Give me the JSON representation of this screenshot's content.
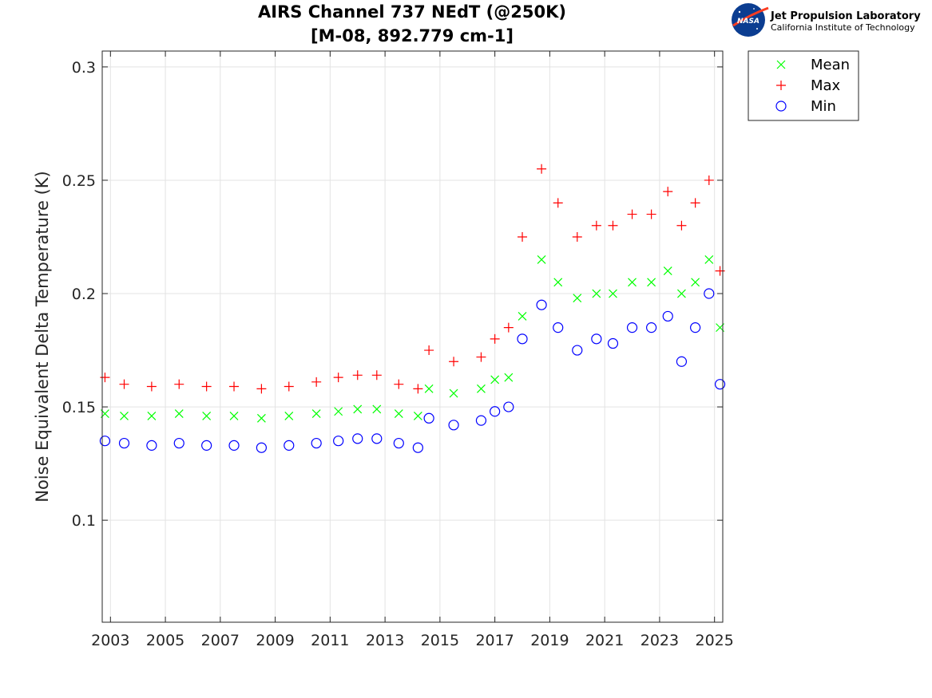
{
  "logo": {
    "agency": "NASA",
    "lab_name": "Jet Propulsion Laboratory",
    "institution": "California Institute of Technology",
    "colors": {
      "nasa_blue": "#0b3d91",
      "nasa_red": "#fc3d21"
    }
  },
  "chart_data": {
    "type": "scatter",
    "title": "AIRS Channel 737 NEdT (@250K)",
    "subtitle": "[M-08, 892.779 cm-1]",
    "xlabel": "",
    "ylabel": "Noise Equivalent Delta Temperature (K)",
    "xlim": [
      2002.7,
      2025.3
    ],
    "ylim": [
      0.055,
      0.307
    ],
    "xticks": [
      2003,
      2005,
      2007,
      2009,
      2011,
      2013,
      2015,
      2017,
      2019,
      2021,
      2023,
      2025
    ],
    "xtick_labels": [
      "2003",
      "2005",
      "2007",
      "2009",
      "2011",
      "2013",
      "2015",
      "2017",
      "2019",
      "2021",
      "2023",
      "2025"
    ],
    "yticks": [
      0.1,
      0.15,
      0.2,
      0.25,
      0.3
    ],
    "ytick_labels": [
      "0.1",
      "0.15",
      "0.2",
      "0.25",
      "0.3"
    ],
    "grid": true,
    "legend_position": "outside-top-right",
    "series": [
      {
        "name": "Mean",
        "marker": "x",
        "color": "#00ff00",
        "x": [
          2002.8,
          2003.5,
          2004.5,
          2005.5,
          2006.5,
          2007.5,
          2008.5,
          2009.5,
          2010.5,
          2011.3,
          2012.0,
          2012.7,
          2013.5,
          2014.2,
          2014.6,
          2015.5,
          2016.5,
          2017.0,
          2017.5,
          2018.0,
          2018.7,
          2019.3,
          2020.0,
          2020.7,
          2021.3,
          2022.0,
          2022.7,
          2023.3,
          2023.8,
          2024.3,
          2024.8,
          2025.2
        ],
        "y": [
          0.147,
          0.146,
          0.146,
          0.147,
          0.146,
          0.146,
          0.145,
          0.146,
          0.147,
          0.148,
          0.149,
          0.149,
          0.147,
          0.146,
          0.158,
          0.156,
          0.158,
          0.162,
          0.163,
          0.19,
          0.215,
          0.205,
          0.198,
          0.2,
          0.2,
          0.205,
          0.205,
          0.21,
          0.2,
          0.205,
          0.215,
          0.185
        ]
      },
      {
        "name": "Max",
        "marker": "+",
        "color": "#ff0000",
        "x": [
          2002.8,
          2003.5,
          2004.5,
          2005.5,
          2006.5,
          2007.5,
          2008.5,
          2009.5,
          2010.5,
          2011.3,
          2012.0,
          2012.7,
          2013.5,
          2014.2,
          2014.6,
          2015.5,
          2016.5,
          2017.0,
          2017.5,
          2018.0,
          2018.7,
          2019.3,
          2020.0,
          2020.7,
          2021.3,
          2022.0,
          2022.7,
          2023.3,
          2023.8,
          2024.3,
          2024.8,
          2025.2
        ],
        "y": [
          0.163,
          0.16,
          0.159,
          0.16,
          0.159,
          0.159,
          0.158,
          0.159,
          0.161,
          0.163,
          0.164,
          0.164,
          0.16,
          0.158,
          0.175,
          0.17,
          0.172,
          0.18,
          0.185,
          0.225,
          0.255,
          0.24,
          0.225,
          0.23,
          0.23,
          0.235,
          0.235,
          0.245,
          0.23,
          0.24,
          0.25,
          0.21
        ]
      },
      {
        "name": "Min",
        "marker": "o",
        "color": "#0000ff",
        "x": [
          2002.8,
          2003.5,
          2004.5,
          2005.5,
          2006.5,
          2007.5,
          2008.5,
          2009.5,
          2010.5,
          2011.3,
          2012.0,
          2012.7,
          2013.5,
          2014.2,
          2014.6,
          2015.5,
          2016.5,
          2017.0,
          2017.5,
          2018.0,
          2018.7,
          2019.3,
          2020.0,
          2020.7,
          2021.3,
          2022.0,
          2022.7,
          2023.3,
          2023.8,
          2024.3,
          2024.8,
          2025.2
        ],
        "y": [
          0.135,
          0.134,
          0.133,
          0.134,
          0.133,
          0.133,
          0.132,
          0.133,
          0.134,
          0.135,
          0.136,
          0.136,
          0.134,
          0.132,
          0.145,
          0.142,
          0.144,
          0.148,
          0.15,
          0.18,
          0.195,
          0.185,
          0.175,
          0.18,
          0.178,
          0.185,
          0.185,
          0.19,
          0.17,
          0.185,
          0.2,
          0.16
        ]
      }
    ]
  }
}
